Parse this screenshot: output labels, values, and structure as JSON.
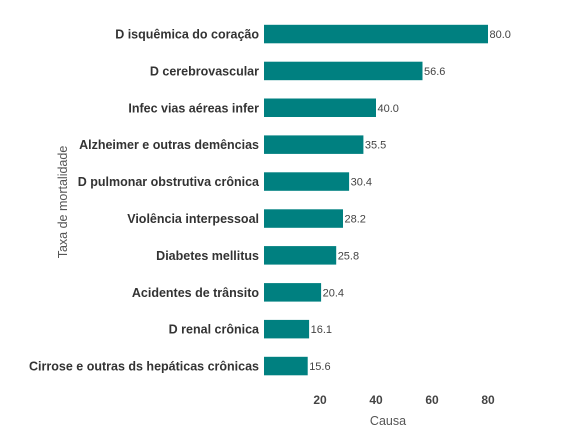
{
  "chart_data": {
    "type": "bar",
    "orientation": "horizontal",
    "categories": [
      "D isquêmica do coração",
      "D cerebrovascular",
      "Infec vias aéreas infer",
      "Alzheimer e outras demências",
      "D pulmonar obstrutiva crônica",
      "Violência interpessoal",
      "Diabetes mellitus",
      "Acidentes de trânsito",
      "D renal crônica",
      "Cirrose e outras ds hepáticas crônicas"
    ],
    "values": [
      80.0,
      56.6,
      40.0,
      35.5,
      30.4,
      28.2,
      25.8,
      20.4,
      16.1,
      15.6
    ],
    "value_labels": [
      "80.0",
      "56.6",
      "40.0",
      "35.5",
      "30.4",
      "28.2",
      "25.8",
      "20.4",
      "16.1",
      "15.6"
    ],
    "xticks": [
      20,
      40,
      60,
      80
    ],
    "xlim": [
      0,
      86
    ],
    "xlabel": "Causa",
    "ylabel": "Taxa de mortalidade",
    "bar_color": "#008080",
    "grid": false
  }
}
